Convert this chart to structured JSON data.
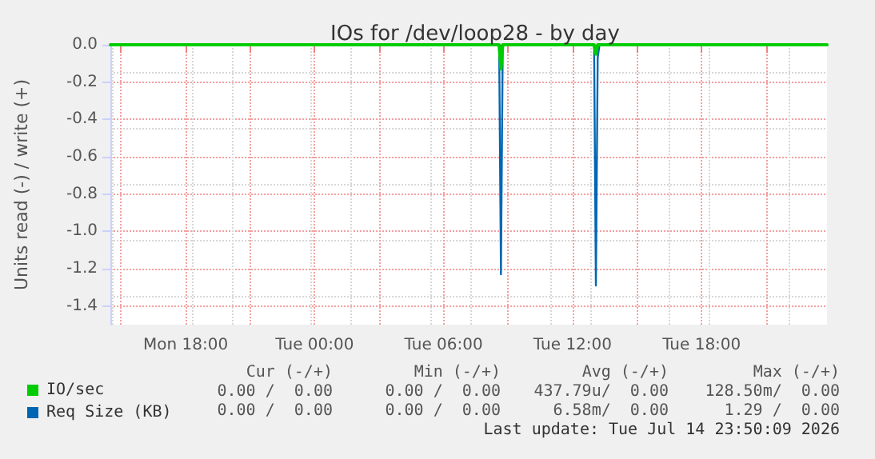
{
  "chart_data": {
    "type": "line",
    "title": "IOs for /dev/loop28 - by day",
    "ylabel": "Units read (-) / write (+)",
    "xlim": [
      "2026-07-13T14:30",
      "2026-07-14T23:50"
    ],
    "xticks": [
      {
        "value": "2026-07-13T15:00",
        "label": null
      },
      {
        "value": "2026-07-13T18:00",
        "label": "Mon 18:00"
      },
      {
        "value": "2026-07-13T21:00",
        "label": null
      },
      {
        "value": "2026-07-14T00:00",
        "label": "Tue 00:00"
      },
      {
        "value": "2026-07-14T03:00",
        "label": null
      },
      {
        "value": "2026-07-14T06:00",
        "label": "Tue 06:00"
      },
      {
        "value": "2026-07-14T09:00",
        "label": null
      },
      {
        "value": "2026-07-14T12:00",
        "label": "Tue 12:00"
      },
      {
        "value": "2026-07-14T15:00",
        "label": null
      },
      {
        "value": "2026-07-14T18:00",
        "label": "Tue 18:00"
      },
      {
        "value": "2026-07-14T21:00",
        "label": null
      }
    ],
    "ylim": [
      -1.5,
      0
    ],
    "yticks": [
      {
        "value": -1.4,
        "label": "-1.4"
      },
      {
        "value": -1.2,
        "label": "-1.2"
      },
      {
        "value": -1,
        "label": "-1.0"
      },
      {
        "value": -0.8,
        "label": "-0.8"
      },
      {
        "value": -0.6,
        "label": "-0.6"
      },
      {
        "value": -0.4,
        "label": "-0.4"
      },
      {
        "value": -0.2,
        "label": "-0.2"
      },
      {
        "value": 0,
        "label": "0.0"
      }
    ],
    "grid": true,
    "legend": "bottom left",
    "marker": "none",
    "line_style": "solid",
    "ref_lines": [
      {
        "axis": "y",
        "value": 0,
        "color": "#000000"
      }
    ],
    "series": [
      {
        "name": "IO/sec",
        "color": "#00cc00",
        "x": [
          "2026-07-13T14:30",
          "2026-07-14T08:35",
          "2026-07-14T08:40",
          "2026-07-14T08:45",
          "2026-07-14T13:00",
          "2026-07-14T13:05",
          "2026-07-14T13:10",
          "2026-07-14T23:50"
        ],
        "values": [
          0,
          0,
          -0.13,
          0,
          0,
          -0.05,
          0,
          0
        ]
      },
      {
        "name": "Req Size (KB)",
        "color": "#0066b3",
        "x": [
          "2026-07-13T14:30",
          "2026-07-14T08:35",
          "2026-07-14T08:40",
          "2026-07-14T08:45",
          "2026-07-14T13:00",
          "2026-07-14T13:05",
          "2026-07-14T13:10",
          "2026-07-14T13:15",
          "2026-07-14T23:50"
        ],
        "values": [
          0,
          0,
          -1.23,
          0,
          0,
          -1.29,
          -0.07,
          0,
          0
        ]
      }
    ],
    "annotations": [
      "Cur (-/+)",
      "Min (-/+)",
      "Avg (-/+)",
      "Max (-/+)",
      "0.00 /  0.00",
      "0.00 /  0.00",
      "437.79u/  0.00",
      "128.50m/  0.00",
      "0.00 /  0.00",
      "0.00 /  0.00",
      "6.58m/  0.00",
      "1.29 /  0.00",
      "Last update: Tue Jul 14 23:50:09 2026"
    ]
  }
}
